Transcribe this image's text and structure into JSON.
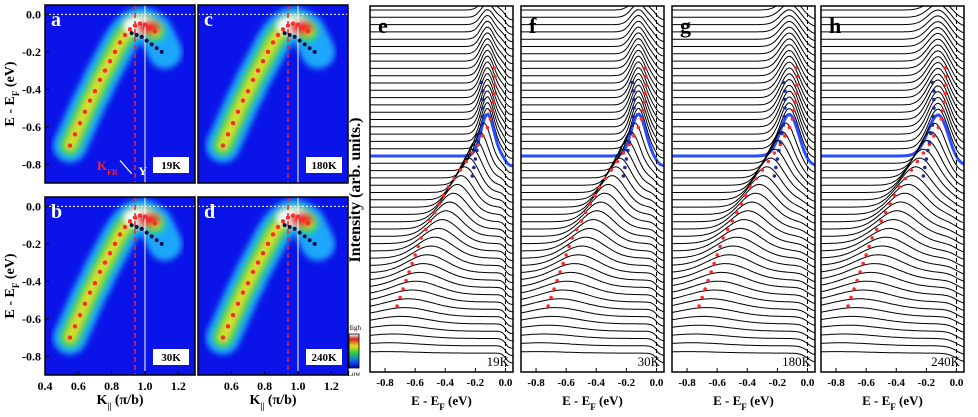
{
  "chart_data": [
    {
      "type": "heatmap",
      "panels": [
        {
          "label": "a",
          "temperature": "19K"
        },
        {
          "label": "c",
          "temperature": "180K"
        },
        {
          "label": "b",
          "temperature": "30K"
        },
        {
          "label": "d",
          "temperature": "240K"
        }
      ],
      "xlabel_main": "K",
      "xlabel_sub": "||",
      "xlabel_unit": " (π/b)",
      "ylabel_main": "E - E",
      "ylabel_sub": "F",
      "ylabel_unit": " (eV)",
      "xlim": [
        0.4,
        1.3
      ],
      "ylim": [
        -0.9,
        0.05
      ],
      "xticks": [
        "0.4",
        "0.6",
        "0.8",
        "1.0",
        "1.2"
      ],
      "yticks": [
        "0.0",
        "-0.2",
        "-0.4",
        "-0.6",
        "-0.8"
      ],
      "kfr_label": "K",
      "kfr_sub": "FR",
      "y_label": "Y",
      "kfr_value": 0.94,
      "y_value": 1.0,
      "colorbar": {
        "high": "High",
        "low": "Low"
      },
      "dispersion_red": {
        "k": [
          0.55,
          0.58,
          0.61,
          0.64,
          0.67,
          0.7,
          0.73,
          0.76,
          0.79,
          0.82,
          0.85,
          0.88,
          0.91,
          0.94,
          0.97,
          1.0,
          1.03,
          1.06
        ],
        "e": [
          -0.7,
          -0.64,
          -0.58,
          -0.52,
          -0.46,
          -0.41,
          -0.35,
          -0.3,
          -0.25,
          -0.2,
          -0.15,
          -0.11,
          -0.08,
          -0.06,
          -0.05,
          -0.055,
          -0.07,
          -0.09
        ]
      },
      "dispersion_blue": {
        "k": [
          0.92,
          0.95,
          0.98,
          1.01,
          1.04,
          1.07,
          1.1
        ],
        "e": [
          -0.1,
          -0.11,
          -0.12,
          -0.14,
          -0.16,
          -0.18,
          -0.2
        ]
      }
    },
    {
      "type": "line",
      "panels": [
        {
          "label": "e",
          "temperature": "19K"
        },
        {
          "label": "f",
          "temperature": "30K"
        },
        {
          "label": "g",
          "temperature": "180K"
        },
        {
          "label": "h",
          "temperature": "240K"
        }
      ],
      "xlabel_main": "E - E",
      "xlabel_sub": "F",
      "xlabel_unit": " (eV)",
      "ylabel": "Intensity (arb. units.)",
      "xlim": [
        -0.9,
        0.05
      ],
      "xticks": [
        "-0.8",
        "-0.6",
        "-0.4",
        "-0.2",
        "0.0"
      ],
      "curve_count": 48,
      "highlight_index": 20,
      "highlight_color": "#2a4dff",
      "red_peaks_e": [
        -0.72,
        -0.7,
        -0.68,
        -0.66,
        -0.64,
        -0.62,
        -0.6,
        -0.58,
        -0.56,
        -0.53,
        -0.5,
        -0.47,
        -0.44,
        -0.41,
        -0.38,
        -0.34,
        -0.3,
        -0.26,
        -0.22,
        -0.18,
        -0.15,
        -0.12,
        -0.1,
        -0.09,
        -0.08,
        -0.075,
        -0.07,
        -0.07,
        -0.075
      ],
      "blue_peaks_e": [
        -0.22,
        -0.21,
        -0.2,
        -0.19,
        -0.18,
        -0.17,
        -0.16,
        -0.155,
        -0.15,
        -0.15,
        -0.15,
        -0.16
      ]
    }
  ]
}
